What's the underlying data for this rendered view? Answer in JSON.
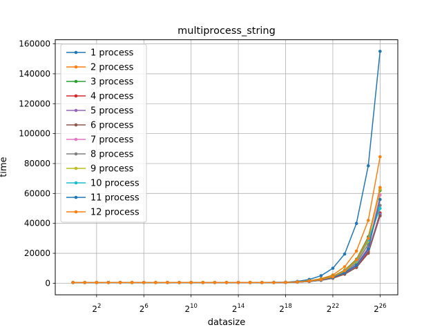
{
  "chart_data": {
    "type": "line",
    "title": "multiprocess_string",
    "xlabel": "datasize",
    "ylabel": "time",
    "x": [
      0,
      1,
      2,
      3,
      4,
      5,
      6,
      7,
      8,
      9,
      10,
      11,
      12,
      13,
      14,
      15,
      16,
      17,
      18,
      19,
      20,
      21,
      22,
      23,
      24,
      25,
      26
    ],
    "xlim": [
      -1.5,
      27.5
    ],
    "ylim": [
      -7750,
      162750
    ],
    "x_ticks": [
      {
        "value": 2,
        "base": "2",
        "exp": "2"
      },
      {
        "value": 6,
        "base": "2",
        "exp": "6"
      },
      {
        "value": 10,
        "base": "2",
        "exp": "10"
      },
      {
        "value": 14,
        "base": "2",
        "exp": "14"
      },
      {
        "value": 18,
        "base": "2",
        "exp": "18"
      },
      {
        "value": 22,
        "base": "2",
        "exp": "22"
      },
      {
        "value": 26,
        "base": "2",
        "exp": "26"
      }
    ],
    "y_ticks": [
      0,
      20000,
      40000,
      60000,
      80000,
      100000,
      120000,
      140000,
      160000
    ],
    "y_tick_labels": [
      "0",
      "20000",
      "40000",
      "60000",
      "80000",
      "100000",
      "120000",
      "140000",
      "160000"
    ],
    "grid": true,
    "legend_position": "upper-left",
    "series": [
      {
        "name": "1 process",
        "color": "#1f77b4",
        "values": [
          500,
          500,
          500,
          500,
          500,
          500,
          500,
          500,
          500,
          500,
          500,
          500,
          500,
          500,
          500,
          500,
          500,
          600,
          700,
          1200,
          2500,
          5000,
          10000,
          19500,
          40000,
          78500,
          155000
        ]
      },
      {
        "name": "2 process",
        "color": "#ff7f0e",
        "values": [
          500,
          500,
          500,
          500,
          500,
          500,
          500,
          500,
          500,
          500,
          500,
          500,
          500,
          500,
          500,
          500,
          500,
          500,
          600,
          900,
          1700,
          3000,
          5500,
          11000,
          21500,
          42000,
          84500
        ]
      },
      {
        "name": "3 process",
        "color": "#2ca02c",
        "values": [
          500,
          500,
          500,
          500,
          500,
          500,
          500,
          500,
          500,
          500,
          500,
          500,
          500,
          500,
          500,
          500,
          500,
          500,
          550,
          800,
          1500,
          2600,
          4600,
          8700,
          16000,
          31000,
          62000
        ]
      },
      {
        "name": "4 process",
        "color": "#d62728",
        "values": [
          500,
          500,
          500,
          500,
          500,
          500,
          500,
          500,
          500,
          500,
          500,
          500,
          500,
          500,
          500,
          500,
          500,
          500,
          500,
          700,
          1200,
          2000,
          3600,
          6500,
          11000,
          21000,
          47000
        ]
      },
      {
        "name": "5 process",
        "color": "#9467bd",
        "values": [
          500,
          500,
          500,
          500,
          500,
          500,
          500,
          500,
          500,
          500,
          500,
          500,
          500,
          500,
          500,
          500,
          500,
          500,
          500,
          700,
          1200,
          2000,
          3600,
          6500,
          11500,
          22000,
          46000
        ]
      },
      {
        "name": "6 process",
        "color": "#8c564b",
        "values": [
          500,
          500,
          500,
          500,
          500,
          500,
          500,
          500,
          500,
          500,
          500,
          500,
          500,
          500,
          500,
          500,
          500,
          500,
          500,
          700,
          1100,
          1900,
          3300,
          6000,
          10500,
          20000,
          45000
        ]
      },
      {
        "name": "7 process",
        "color": "#e377c2",
        "values": [
          500,
          500,
          500,
          500,
          500,
          500,
          500,
          500,
          500,
          500,
          500,
          500,
          500,
          500,
          500,
          500,
          500,
          500,
          500,
          700,
          1200,
          2100,
          3800,
          7000,
          12500,
          24000,
          59000
        ]
      },
      {
        "name": "8 process",
        "color": "#7f7f7f",
        "values": [
          500,
          500,
          500,
          500,
          500,
          500,
          500,
          500,
          500,
          500,
          500,
          500,
          500,
          500,
          500,
          500,
          500,
          500,
          500,
          750,
          1300,
          2200,
          4000,
          7500,
          13500,
          26000,
          52000
        ]
      },
      {
        "name": "9 process",
        "color": "#bcbd22",
        "values": [
          500,
          500,
          500,
          500,
          500,
          500,
          500,
          500,
          500,
          500,
          500,
          500,
          500,
          500,
          500,
          500,
          500,
          500,
          550,
          800,
          1400,
          2400,
          4300,
          8000,
          14500,
          28000,
          63000
        ]
      },
      {
        "name": "10 process",
        "color": "#17becf",
        "values": [
          500,
          500,
          500,
          500,
          500,
          500,
          500,
          500,
          500,
          500,
          500,
          500,
          500,
          500,
          500,
          500,
          500,
          500,
          550,
          800,
          1400,
          2400,
          4300,
          8100,
          15000,
          29000,
          50000
        ]
      },
      {
        "name": "11 process",
        "color": "#1f77b4",
        "values": [
          500,
          500,
          500,
          500,
          500,
          500,
          500,
          500,
          500,
          500,
          500,
          500,
          500,
          500,
          500,
          500,
          500,
          500,
          500,
          700,
          1200,
          2100,
          3800,
          7000,
          12000,
          23000,
          56000
        ]
      },
      {
        "name": "12 process",
        "color": "#ff7f0e",
        "values": [
          500,
          500,
          500,
          500,
          500,
          500,
          500,
          500,
          500,
          500,
          500,
          500,
          500,
          500,
          500,
          500,
          500,
          500,
          550,
          800,
          1400,
          2400,
          4300,
          8300,
          15500,
          30000,
          64000
        ]
      }
    ]
  }
}
